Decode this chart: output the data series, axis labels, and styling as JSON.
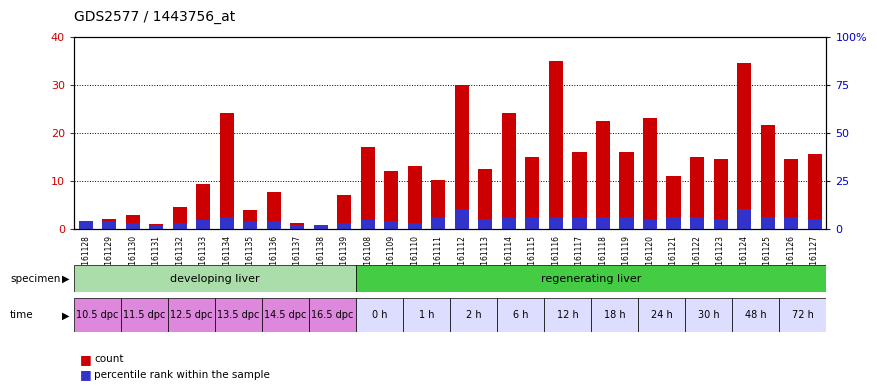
{
  "title": "GDS2577 / 1443756_at",
  "samples": [
    "GSM161128",
    "GSM161129",
    "GSM161130",
    "GSM161131",
    "GSM161132",
    "GSM161133",
    "GSM161134",
    "GSM161135",
    "GSM161136",
    "GSM161137",
    "GSM161138",
    "GSM161139",
    "GSM161108",
    "GSM161109",
    "GSM161110",
    "GSM161111",
    "GSM161112",
    "GSM161113",
    "GSM161114",
    "GSM161115",
    "GSM161116",
    "GSM161117",
    "GSM161118",
    "GSM161119",
    "GSM161120",
    "GSM161121",
    "GSM161122",
    "GSM161123",
    "GSM161124",
    "GSM161125",
    "GSM161126",
    "GSM161127"
  ],
  "count_values": [
    1.5,
    2.0,
    2.8,
    1.0,
    4.5,
    9.2,
    24.0,
    3.8,
    7.7,
    1.2,
    0.7,
    7.0,
    17.0,
    12.0,
    13.0,
    10.2,
    30.0,
    12.5,
    24.0,
    15.0,
    35.0,
    16.0,
    22.5,
    16.0,
    23.0,
    11.0,
    15.0,
    14.5,
    34.5,
    21.5,
    14.5,
    15.5
  ],
  "percentile_values": [
    1.5,
    1.5,
    1.2,
    0.8,
    1.2,
    1.8,
    2.5,
    1.5,
    1.5,
    0.8,
    0.8,
    1.2,
    1.8,
    1.5,
    1.2,
    2.5,
    4.0,
    2.0,
    2.5,
    2.5,
    2.5,
    2.5,
    2.5,
    2.5,
    2.0,
    2.5,
    2.5,
    2.0,
    4.0,
    2.5,
    2.5,
    2.0
  ],
  "ylim_left": [
    0,
    40
  ],
  "ylim_right": [
    0,
    100
  ],
  "yticks_left": [
    0,
    10,
    20,
    30,
    40
  ],
  "yticks_right": [
    0,
    25,
    50,
    75,
    100
  ],
  "ytick_labels_right": [
    "0",
    "25",
    "50",
    "75",
    "100%"
  ],
  "bar_color_red": "#cc0000",
  "bar_color_blue": "#3333cc",
  "specimen_groups": [
    {
      "label": "developing liver",
      "start": 0,
      "end": 12,
      "color": "#aaddaa"
    },
    {
      "label": "regenerating liver",
      "start": 12,
      "end": 32,
      "color": "#44cc44"
    }
  ],
  "time_groups": [
    {
      "label": "10.5 dpc",
      "start": 0,
      "end": 2,
      "color": "#dd88dd"
    },
    {
      "label": "11.5 dpc",
      "start": 2,
      "end": 4,
      "color": "#dd88dd"
    },
    {
      "label": "12.5 dpc",
      "start": 4,
      "end": 6,
      "color": "#dd88dd"
    },
    {
      "label": "13.5 dpc",
      "start": 6,
      "end": 8,
      "color": "#dd88dd"
    },
    {
      "label": "14.5 dpc",
      "start": 8,
      "end": 10,
      "color": "#dd88dd"
    },
    {
      "label": "16.5 dpc",
      "start": 10,
      "end": 12,
      "color": "#dd88dd"
    },
    {
      "label": "0 h",
      "start": 12,
      "end": 14,
      "color": "#ffffff"
    },
    {
      "label": "1 h",
      "start": 14,
      "end": 16,
      "color": "#ffffff"
    },
    {
      "label": "2 h",
      "start": 16,
      "end": 18,
      "color": "#ffffff"
    },
    {
      "label": "6 h",
      "start": 18,
      "end": 20,
      "color": "#ffffff"
    },
    {
      "label": "12 h",
      "start": 20,
      "end": 22,
      "color": "#ffffff"
    },
    {
      "label": "18 h",
      "start": 22,
      "end": 24,
      "color": "#ffffff"
    },
    {
      "label": "24 h",
      "start": 24,
      "end": 26,
      "color": "#ffffff"
    },
    {
      "label": "30 h",
      "start": 26,
      "end": 28,
      "color": "#ffffff"
    },
    {
      "label": "48 h",
      "start": 28,
      "end": 30,
      "color": "#ffffff"
    },
    {
      "label": "72 h",
      "start": 30,
      "end": 32,
      "color": "#ffffff"
    }
  ],
  "bg_color": "#ffffff",
  "axis_label_color_left": "#cc0000",
  "axis_label_color_right": "#0000cc",
  "bar_width": 0.6
}
